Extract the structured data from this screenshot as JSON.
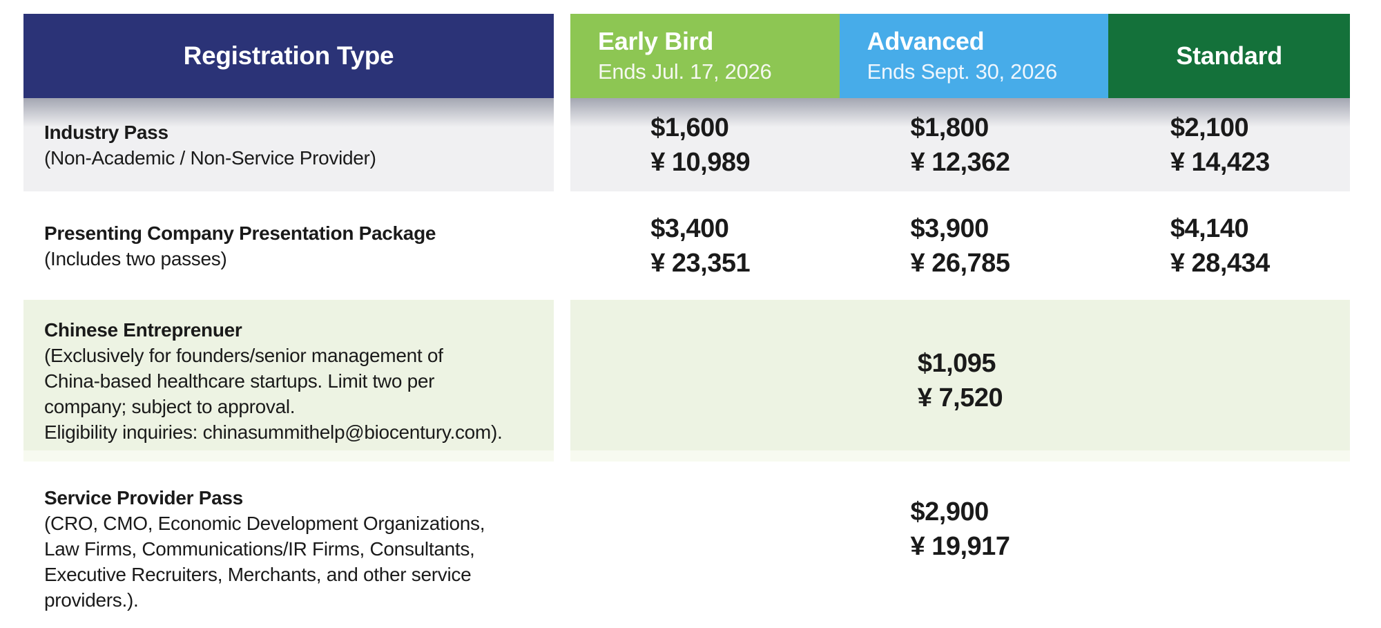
{
  "chart_data": {
    "type": "table",
    "title": "Registration pricing table",
    "columns": [
      "Registration Type",
      "Early Bird — Ends Jul. 17, 2026",
      "Advanced — Ends Sept. 30, 2026",
      "Standard"
    ],
    "rows": [
      [
        "Industry Pass (Non-Academic / Non-Service Provider)",
        "$1,600 / ¥ 10,989",
        "$1,800 / ¥ 12,362",
        "$2,100 / ¥ 14,423"
      ],
      [
        "Presenting Company Presentation Package (Includes two passes)",
        "$3,400 / ¥ 23,351",
        "$3,900 / ¥ 26,785",
        "$4,140 / ¥ 28,434"
      ],
      [
        "Chinese Entreprenuer (Exclusively for founders/senior management of China-based healthcare startups. Limit two per company; subject to approval. Eligibility inquiries: chinasummithelp@biocentury.com).",
        "",
        "$1,095 / ¥ 7,520",
        ""
      ],
      [
        "Service Provider Pass (CRO, CMO, Economic Development Organizations, Law Firms, Communications/IR Firms, Consultants, Executive Recruiters, Merchants, and other service providers.).",
        "",
        "$2,900 / ¥ 19,917",
        ""
      ]
    ],
    "layout_hints": {
      "grid": false,
      "legend": "none"
    }
  },
  "header": {
    "registration_type": "Registration Type",
    "columns": [
      {
        "title": "Early Bird",
        "subtitle": "Ends Jul. 17, 2026",
        "color": "#8DC653"
      },
      {
        "title": "Advanced",
        "subtitle": "Ends Sept. 30, 2026",
        "color": "#47ACE9"
      },
      {
        "title": "Standard",
        "subtitle": "",
        "color": "#14713A"
      }
    ]
  },
  "rows": [
    {
      "name": "Industry Pass",
      "desc_lines": [
        "(Non-Academic / Non-Service Provider)"
      ],
      "prices": [
        {
          "usd": "$1,600",
          "cny": "¥ 10,989"
        },
        {
          "usd": "$1,800",
          "cny": "¥ 12,362"
        },
        {
          "usd": "$2,100",
          "cny": "¥ 14,423"
        }
      ]
    },
    {
      "name": "Presenting Company Presentation Package",
      "desc_lines": [
        "(Includes two passes)"
      ],
      "prices": [
        {
          "usd": "$3,400",
          "cny": "¥ 23,351"
        },
        {
          "usd": "$3,900",
          "cny": "¥ 26,785"
        },
        {
          "usd": "$4,140",
          "cny": "¥ 28,434"
        }
      ]
    },
    {
      "name": "Chinese Entreprenuer",
      "desc_lines": [
        "(Exclusively for founders/senior management of",
        "China-based healthcare startups. Limit two per",
        "company; subject to approval.",
        "Eligibility inquiries: chinasummithelp@biocentury.com)."
      ],
      "prices": [
        {
          "usd": "",
          "cny": ""
        },
        {
          "usd": "$1,095",
          "cny": "¥ 7,520"
        },
        {
          "usd": "",
          "cny": ""
        }
      ]
    },
    {
      "name": "Service Provider Pass",
      "desc_lines": [
        "(CRO, CMO, Economic Development Organizations,",
        "Law Firms, Communications/IR Firms, Consultants,",
        "Executive Recruiters, Merchants, and other service",
        "providers.)."
      ],
      "prices": [
        {
          "usd": "",
          "cny": ""
        },
        {
          "usd": "$2,900",
          "cny": "¥ 19,917"
        },
        {
          "usd": "",
          "cny": ""
        }
      ]
    }
  ],
  "colors": {
    "header_navy": "#2B3377",
    "early_bird_green": "#8DC653",
    "advanced_blue": "#47ACE9",
    "standard_green": "#14713A",
    "row_gray": "#F0F0F2",
    "row_light_green": "#EDF3E3",
    "row_light_green_strip": "#F7FAF0",
    "text": "#1A1A1A",
    "header_text": "#FFFFFF"
  }
}
